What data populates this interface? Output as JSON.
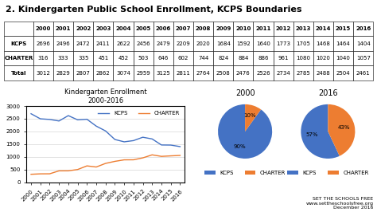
{
  "title": "2. Kindergarten Public School Enrollment, KCPS Boundaries",
  "annotations": [
    "SET THE SCHOOLS FREE",
    "www.settheschoolsfree.org",
    "December 2016"
  ],
  "chart_data": [
    {
      "type": "table",
      "categories": [
        "2000",
        "2001",
        "2002",
        "2003",
        "2004",
        "2005",
        "2006",
        "2007",
        "2008",
        "2009",
        "2010",
        "2011",
        "2012",
        "2013",
        "2014",
        "2015",
        "2016"
      ],
      "series": [
        {
          "name": "KCPS",
          "values": [
            2696,
            2496,
            2472,
            2411,
            2622,
            2456,
            2479,
            2209,
            2020,
            1684,
            1592,
            1640,
            1773,
            1705,
            1468,
            1464,
            1404
          ]
        },
        {
          "name": "CHARTER",
          "values": [
            316,
            333,
            335,
            451,
            452,
            503,
            646,
            602,
            744,
            824,
            884,
            886,
            961,
            1080,
            1020,
            1040,
            1057
          ]
        },
        {
          "name": "Total",
          "values": [
            3012,
            2829,
            2807,
            2862,
            3074,
            2959,
            3125,
            2811,
            2764,
            2508,
            2476,
            2526,
            2734,
            2785,
            2488,
            2504,
            2461
          ]
        }
      ]
    },
    {
      "type": "line",
      "title": "Kindergarten Enrollment\n2000-2016",
      "x": [
        2000,
        2001,
        2002,
        2003,
        2004,
        2005,
        2006,
        2007,
        2008,
        2009,
        2010,
        2011,
        2012,
        2013,
        2014,
        2015,
        2016
      ],
      "xlim": [
        1999.5,
        2016.5
      ],
      "xticks": [
        2000,
        2001,
        2002,
        2003,
        2004,
        2005,
        2006,
        2007,
        2008,
        2009,
        2010,
        2011,
        2012,
        2013,
        2014,
        2015,
        2016
      ],
      "ylim": [
        0,
        3000
      ],
      "yticks": [
        0,
        500,
        1000,
        1500,
        2000,
        2500,
        3000
      ],
      "grid": true,
      "legend": "upper right",
      "series": [
        {
          "name": "KCPS",
          "color": "#4472C4",
          "values": [
            2696,
            2496,
            2472,
            2411,
            2622,
            2456,
            2479,
            2209,
            2020,
            1684,
            1592,
            1640,
            1773,
            1705,
            1468,
            1464,
            1404
          ]
        },
        {
          "name": "CHARTER",
          "color": "#ED7D31",
          "values": [
            316,
            333,
            335,
            451,
            452,
            503,
            646,
            602,
            744,
            824,
            884,
            886,
            961,
            1080,
            1020,
            1040,
            1057
          ]
        }
      ]
    },
    {
      "type": "pie",
      "title": "2000",
      "categories": [
        "KCPS",
        "CHARTER"
      ],
      "values": [
        90,
        10
      ],
      "value_labels": [
        "90%",
        "10%"
      ],
      "colors": [
        "#4472C4",
        "#ED7D31"
      ],
      "legend": "lower center"
    },
    {
      "type": "pie",
      "title": "2016",
      "categories": [
        "KCPS",
        "CHARTER"
      ],
      "values": [
        57,
        43
      ],
      "value_labels": [
        "57%",
        "43%"
      ],
      "colors": [
        "#4472C4",
        "#ED7D31"
      ],
      "legend": "lower center"
    }
  ]
}
